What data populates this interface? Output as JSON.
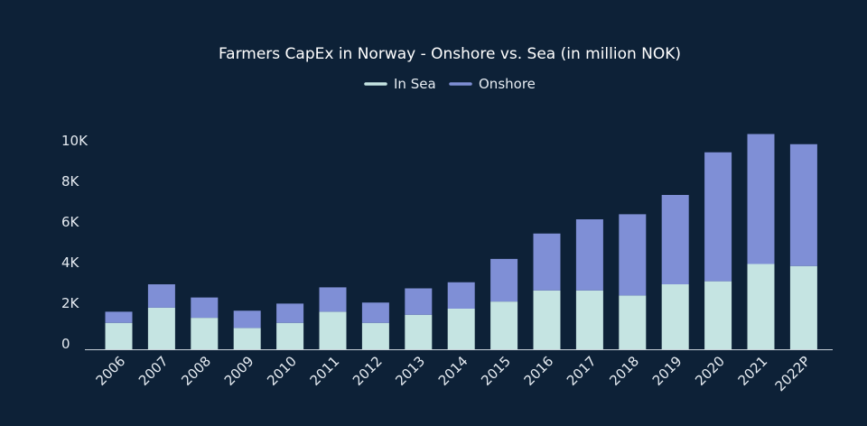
{
  "colors": {
    "background": "#0d2137",
    "in_sea": "#c5e4e2",
    "onshore": "#7f8fd6",
    "axis": "#c8d0d8",
    "text": "#e6ecf2"
  },
  "chart_data": {
    "type": "bar",
    "stacked": true,
    "title": "Farmers CapEx in Norway - Onshore vs. Sea (in million NOK)",
    "xlabel": "",
    "ylabel": "",
    "ylim": [
      0,
      10500
    ],
    "yticks": [
      0,
      2000,
      4000,
      6000,
      8000,
      10000
    ],
    "ytick_labels": [
      "0",
      "2K",
      "4K",
      "6K",
      "8K",
      "10K"
    ],
    "grid": false,
    "legend_position": "top-center",
    "categories": [
      "2006",
      "2007",
      "2008",
      "2009",
      "2010",
      "2011",
      "2012",
      "2013",
      "2014",
      "2015",
      "2016",
      "2017",
      "2018",
      "2019",
      "2020",
      "2021",
      "2022P"
    ],
    "series": [
      {
        "name": "In Sea",
        "color": "#c5e4e2",
        "values": [
          1300,
          2050,
          1550,
          1050,
          1300,
          1850,
          1300,
          1700,
          2000,
          2350,
          2900,
          2900,
          2650,
          3200,
          3350,
          4200,
          4100
        ]
      },
      {
        "name": "Onshore",
        "color": "#7f8fd6",
        "values": [
          550,
          1150,
          1000,
          850,
          950,
          1200,
          1000,
          1300,
          1300,
          2100,
          2800,
          3500,
          4000,
          4400,
          6350,
          6400,
          6000
        ]
      }
    ]
  }
}
